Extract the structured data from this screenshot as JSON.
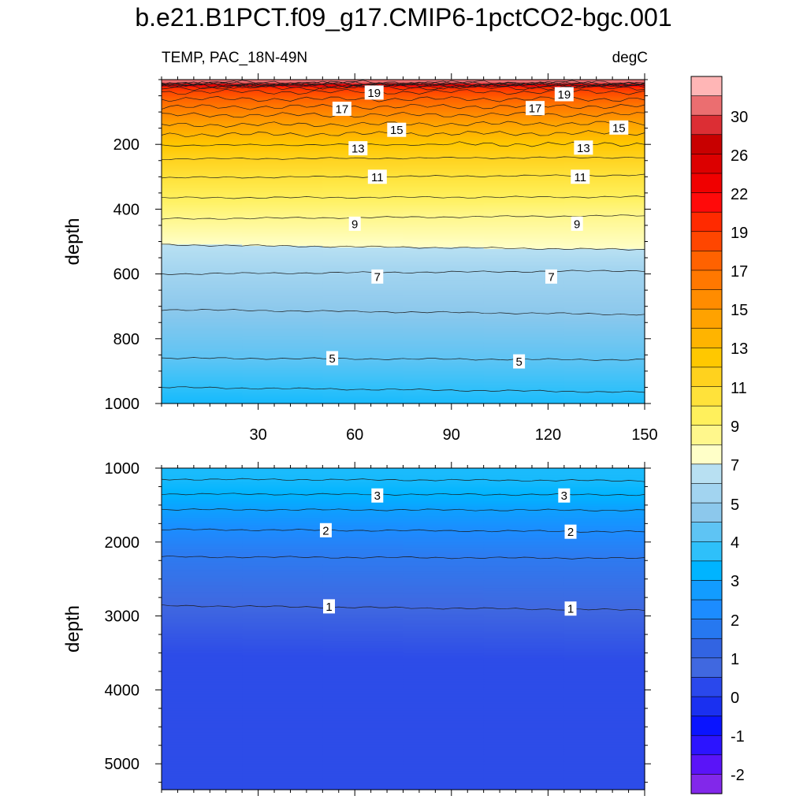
{
  "chart_data": {
    "title": "b.e21.B1PCT.f09_g17.CMIP6-1pctCO2-bgc.001",
    "left_label": "TEMP, PAC_18N-49N",
    "right_label": "degC",
    "type": "contour",
    "x_range": [
      0,
      150
    ],
    "x_ticks": [
      "30",
      "60",
      "90",
      "120",
      "150"
    ],
    "panels": [
      {
        "name": "upper",
        "ylabel": "depth",
        "ylim": [
          0,
          1000
        ],
        "y_ticks": [
          "200",
          "400",
          "600",
          "800",
          "1000"
        ],
        "contours": [
          {
            "level": 31,
            "depth": [
              10,
              10
            ]
          },
          {
            "level": 30,
            "depth": [
              12,
              12
            ]
          },
          {
            "level": 28,
            "depth": [
              14,
              14
            ]
          },
          {
            "level": 26,
            "depth": [
              16,
              16
            ]
          },
          {
            "level": 24,
            "depth": [
              18,
              18
            ]
          },
          {
            "level": 22,
            "depth": [
              21,
              21
            ]
          },
          {
            "level": 20,
            "depth": [
              25,
              25
            ]
          },
          {
            "level": 19,
            "depth": [
              38,
              38
            ]
          },
          {
            "level": 18,
            "depth": [
              60,
              60
            ]
          },
          {
            "level": 17,
            "depth": [
              85,
              82
            ]
          },
          {
            "level": 16,
            "depth": [
              110,
              108
            ]
          },
          {
            "level": 15,
            "depth": [
              140,
              135
            ]
          },
          {
            "level": 14,
            "depth": [
              170,
              165
            ]
          },
          {
            "level": 13,
            "depth": [
              203,
              198
            ]
          },
          {
            "level": 12,
            "depth": [
              245,
              240
            ]
          },
          {
            "level": 11,
            "depth": [
              303,
              295
            ]
          },
          {
            "level": 10,
            "depth": [
              365,
              362
            ]
          },
          {
            "level": 9,
            "depth": [
              430,
              420
            ]
          },
          {
            "level": 8,
            "depth": [
              510,
              525
            ]
          },
          {
            "level": 7,
            "depth": [
              600,
              590
            ]
          },
          {
            "level": 6,
            "depth": [
              710,
              725
            ]
          },
          {
            "level": 5,
            "depth": [
              860,
              865
            ]
          },
          {
            "level": 4,
            "depth": [
              950,
              965
            ]
          }
        ],
        "labels": [
          {
            "text": "19",
            "x": 66,
            "depth": 40
          },
          {
            "text": "17",
            "x": 56,
            "depth": 90
          },
          {
            "text": "15",
            "x": 73,
            "depth": 155
          },
          {
            "text": "13",
            "x": 61,
            "depth": 212
          },
          {
            "text": "11",
            "x": 67,
            "depth": 300
          },
          {
            "text": "9",
            "x": 60,
            "depth": 445
          },
          {
            "text": "7",
            "x": 67,
            "depth": 608
          },
          {
            "text": "5",
            "x": 53,
            "depth": 860
          },
          {
            "text": "19",
            "x": 125,
            "depth": 45
          },
          {
            "text": "17",
            "x": 116,
            "depth": 88
          },
          {
            "text": "15",
            "x": 142,
            "depth": 148
          },
          {
            "text": "13",
            "x": 131,
            "depth": 210
          },
          {
            "text": "11",
            "x": 130,
            "depth": 300
          },
          {
            "text": "9",
            "x": 129,
            "depth": 445
          },
          {
            "text": "7",
            "x": 121,
            "depth": 608
          },
          {
            "text": "5",
            "x": 111,
            "depth": 870
          }
        ]
      },
      {
        "name": "lower",
        "ylabel": "depth",
        "ylim": [
          1000,
          5350
        ],
        "y_ticks": [
          "1000",
          "2000",
          "3000",
          "4000",
          "5000"
        ],
        "contours": [
          {
            "level": 3.5,
            "depth": [
              1150,
              1170
            ]
          },
          {
            "level": 3,
            "depth": [
              1350,
              1360
            ]
          },
          {
            "level": 2.5,
            "depth": [
              1560,
              1570
            ]
          },
          {
            "level": 2,
            "depth": [
              1830,
              1860
            ]
          },
          {
            "level": 1.5,
            "depth": [
              2200,
              2220
            ]
          },
          {
            "level": 1,
            "depth": [
              2860,
              2920
            ]
          }
        ],
        "labels": [
          {
            "text": "3",
            "x": 67,
            "depth": 1370
          },
          {
            "text": "2",
            "x": 51,
            "depth": 1840
          },
          {
            "text": "1",
            "x": 52,
            "depth": 2870
          },
          {
            "text": "3",
            "x": 125,
            "depth": 1370
          },
          {
            "text": "2",
            "x": 127,
            "depth": 1860
          },
          {
            "text": "1",
            "x": 127,
            "depth": 2900
          }
        ]
      }
    ],
    "colorbar": {
      "labels": [
        "30",
        "26",
        "22",
        "19",
        "17",
        "15",
        "13",
        "11",
        "9",
        "7",
        "5",
        "4",
        "3",
        "2",
        "1",
        "0",
        "-1",
        "-2"
      ],
      "colors_top_to_bottom": [
        "#ffb6b6",
        "#eb6e70",
        "#dc2e34",
        "#c80000",
        "#dc0000",
        "#f00000",
        "#ff0a0a",
        "#ff2a00",
        "#ff4600",
        "#ff6200",
        "#ff7800",
        "#ff8c00",
        "#ffa200",
        "#ffb400",
        "#ffc800",
        "#ffd21e",
        "#ffe23a",
        "#fff05c",
        "#fff78c",
        "#ffffc8",
        "#b8e0f2",
        "#a2d4f0",
        "#8cc8ec",
        "#5ec4f4",
        "#2ec0fa",
        "#00b4ff",
        "#129cff",
        "#1c8cff",
        "#2678f0",
        "#3264e2",
        "#4068e0",
        "#2a48ec",
        "#1a30f0",
        "#0a14ff",
        "#2c14ff",
        "#5a14f8",
        "#8228ea"
      ]
    }
  }
}
